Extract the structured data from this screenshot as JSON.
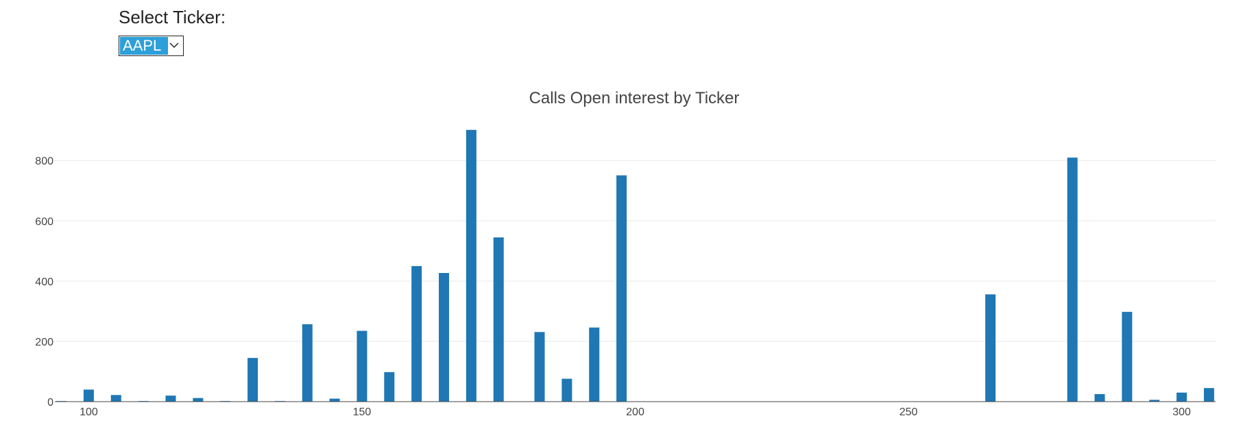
{
  "controls": {
    "label": "Select Ticker:",
    "selected": "AAPL",
    "arrow_icon": "chevron-down-icon",
    "selected_bg": "#2d9fd9"
  },
  "chart_data": {
    "type": "bar",
    "title": "Calls Open interest by Ticker",
    "xlabel": "",
    "ylabel": "",
    "xlim": [
      93.8,
      306.2
    ],
    "ylim": [
      0,
      947
    ],
    "xticks": [
      100,
      150,
      200,
      250,
      300
    ],
    "yticks": [
      0,
      200,
      400,
      600,
      800
    ],
    "grid": true,
    "bar_color": "#1f77b4",
    "x": [
      95,
      100,
      105,
      110,
      115,
      120,
      125,
      130,
      135,
      140,
      145,
      150,
      155,
      160,
      165,
      170,
      175,
      182.5,
      187.5,
      192.5,
      197.5,
      265,
      280,
      285,
      290,
      295,
      300,
      305
    ],
    "values": [
      2,
      40,
      22,
      2,
      20,
      12,
      2,
      145,
      2,
      257,
      10,
      235,
      98,
      450,
      427,
      902,
      545,
      231,
      76,
      246,
      751,
      356,
      810,
      25,
      298,
      6,
      30,
      45
    ]
  }
}
